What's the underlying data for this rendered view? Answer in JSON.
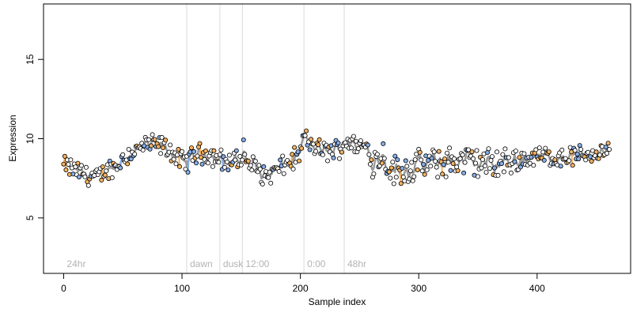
{
  "chart_data": {
    "type": "scatter",
    "title": "",
    "xlabel": "Sample index",
    "ylabel": "Expression",
    "xlim": [
      -17,
      479
    ],
    "ylim": [
      1.5,
      18.5
    ],
    "x_ticks": [
      0,
      100,
      200,
      300,
      400
    ],
    "y_ticks": [
      5,
      10,
      15
    ],
    "grid": false,
    "legend": "none",
    "colors": {
      "orange_points": "#f5b25f",
      "blue_points": "#86aee8",
      "white_points": "#ffffff",
      "point_stroke": "#000000",
      "trend_line": "#9a9a9a",
      "orange_line": "#f5b25f",
      "blue_line": "#86aee8",
      "divider_line": "#d9d9d9",
      "region_text": "#b3b3b3"
    },
    "region_markers": [
      {
        "label": "24hr",
        "x": 0
      },
      {
        "label": "dawn",
        "x": 104
      },
      {
        "label": "dusk",
        "x": 132
      },
      {
        "label": "12:00",
        "x": 151
      },
      {
        "label": "0:00",
        "x": 203
      },
      {
        "label": "48hr",
        "x": 237
      }
    ],
    "trend_knots": [
      [
        0,
        8.3
      ],
      [
        10,
        8.0
      ],
      [
        20,
        7.7
      ],
      [
        30,
        7.5
      ],
      [
        35,
        8.0
      ],
      [
        45,
        8.3
      ],
      [
        52,
        8.9
      ],
      [
        60,
        9.2
      ],
      [
        70,
        9.6
      ],
      [
        80,
        9.6
      ],
      [
        90,
        9.3
      ],
      [
        96,
        8.7
      ],
      [
        104,
        8.5
      ],
      [
        110,
        9.0
      ],
      [
        120,
        9.1
      ],
      [
        130,
        8.8
      ],
      [
        138,
        8.5
      ],
      [
        145,
        8.6
      ],
      [
        150,
        8.6
      ],
      [
        152,
        9.6
      ],
      [
        156,
        8.2
      ],
      [
        160,
        8.4
      ],
      [
        166,
        7.9
      ],
      [
        170,
        7.6
      ],
      [
        178,
        7.9
      ],
      [
        186,
        8.3
      ],
      [
        194,
        8.7
      ],
      [
        200,
        9.0
      ],
      [
        203,
        10.3
      ],
      [
        206,
        9.7
      ],
      [
        212,
        9.5
      ],
      [
        220,
        9.2
      ],
      [
        230,
        9.3
      ],
      [
        240,
        9.9
      ],
      [
        248,
        9.5
      ],
      [
        256,
        9.5
      ],
      [
        262,
        8.5
      ],
      [
        270,
        9.1
      ],
      [
        276,
        8.0
      ],
      [
        285,
        8.0
      ],
      [
        300,
        8.3
      ],
      [
        320,
        8.5
      ],
      [
        340,
        8.6
      ],
      [
        360,
        8.4
      ],
      [
        380,
        8.6
      ],
      [
        400,
        8.9
      ],
      [
        420,
        8.8
      ],
      [
        440,
        9.0
      ],
      [
        460,
        9.2
      ],
      [
        462,
        9.0
      ]
    ],
    "n_points": 462
  }
}
